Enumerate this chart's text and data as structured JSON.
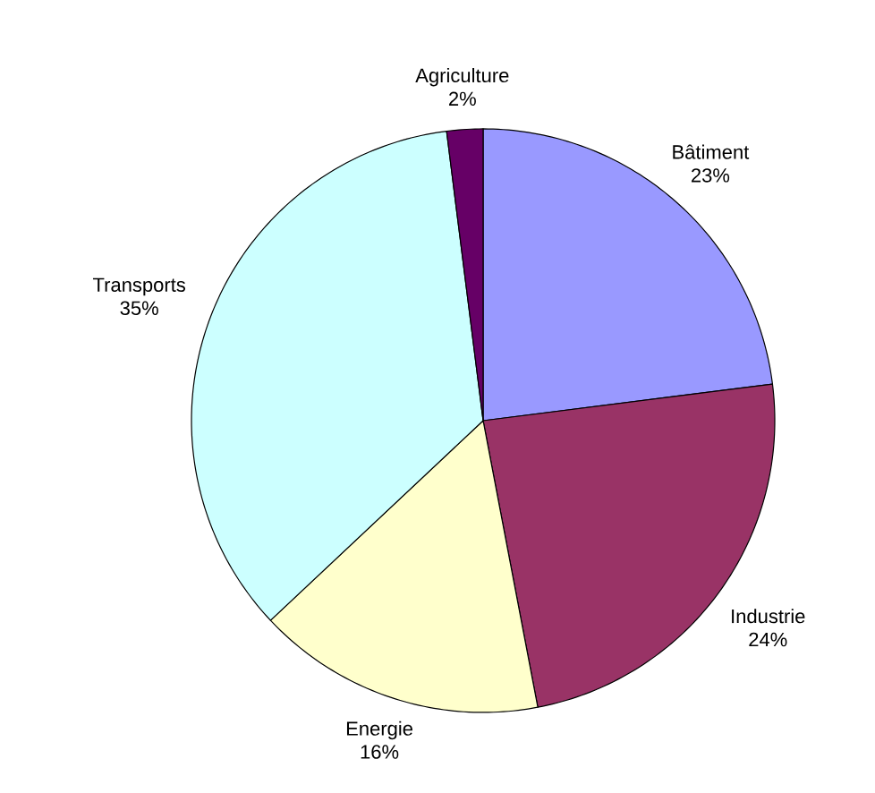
{
  "chart_data": {
    "type": "pie",
    "categories": [
      "Bâtiment",
      "Industrie",
      "Energie",
      "Transports",
      "Agriculture"
    ],
    "values": [
      23,
      24,
      16,
      35,
      2
    ],
    "value_labels": [
      "23%",
      "24%",
      "16%",
      "35%",
      "2%"
    ],
    "colors": [
      "#9999ff",
      "#993366",
      "#ffffcc",
      "#ccffff",
      "#660066"
    ]
  }
}
